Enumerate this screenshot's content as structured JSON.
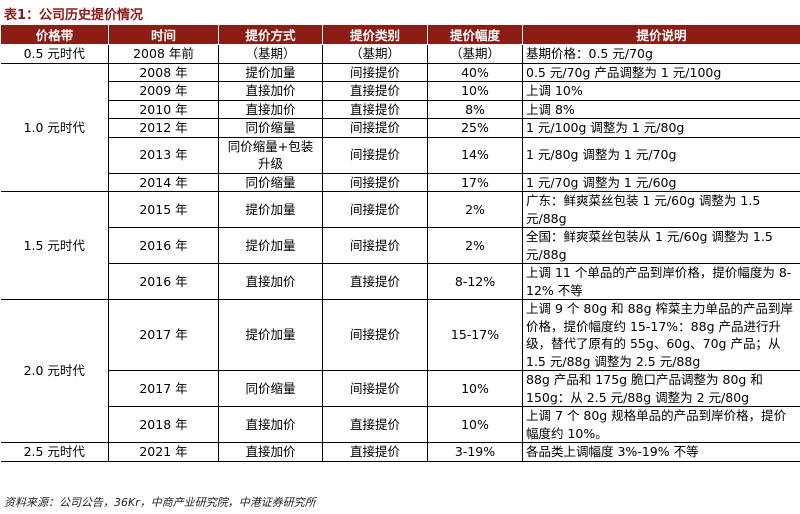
{
  "title": "表1：公司历史提价情况",
  "table": {
    "header": [
      "价格带",
      "时间",
      "提价方式",
      "提价类别",
      "提价幅度",
      "提价说明"
    ],
    "bands": [
      {
        "label": "0.5 元时代",
        "span": 1
      },
      {
        "label": "1.0 元时代",
        "span": 6
      },
      {
        "label": "1.5 元时代",
        "span": 3
      },
      {
        "label": "2.0 元时代",
        "span": 3
      },
      {
        "label": "2.5 元时代",
        "span": 1
      }
    ],
    "rows": [
      [
        "2008 年前",
        "（基期）",
        "（基期）",
        "（基期）",
        "基期价格：0.5 元/70g"
      ],
      [
        "2008 年",
        "提价加量",
        "间接提价",
        "40%",
        "0.5 元/70g 产品调整为 1 元/100g"
      ],
      [
        "2009 年",
        "直接加价",
        "直接提价",
        "10%",
        "上调 10%"
      ],
      [
        "2010 年",
        "直接加价",
        "直接提价",
        "8%",
        "上调 8%"
      ],
      [
        "2012 年",
        "同价缩量",
        "间接提价",
        "25%",
        "1 元/100g 调整为 1 元/80g"
      ],
      [
        "2013 年",
        "同价缩量+包装升级",
        "间接提价",
        "14%",
        "1 元/80g 调整为 1 元/70g"
      ],
      [
        "2014 年",
        "同价缩量",
        "间接提价",
        "17%",
        "1 元/70g 调整为 1 元/60g"
      ],
      [
        "2015 年",
        "提价加量",
        "间接提价",
        "2%",
        "广东：鲜爽菜丝包装 1 元/60g 调整为 1.5 元/88g"
      ],
      [
        "2016 年",
        "提价加量",
        "间接提价",
        "2%",
        "全国：鲜爽菜丝包装从 1 元/60g 调整为 1.5 元/88g"
      ],
      [
        "2016 年",
        "直接加价",
        "直接提价",
        "8-12%",
        "上调 11 个单品的产品到岸价格，提价幅度为 8-12% 不等"
      ],
      [
        "2017 年",
        "提价加量",
        "间接提价",
        "15-17%",
        "上调 9 个 80g 和 88g 榨菜主力单品的产品到岸价格，提价幅度约 15-17%：88g 产品进行升级，替代了原有的 55g、60g、70g 产品；从 1.5 元/88g 调整为 2.5 元/88g"
      ],
      [
        "2017 年",
        "同价缩量",
        "间接提价",
        "10%",
        "88g 产品和 175g 脆口产品调整为 80g 和 150g：从 2.5 元/88g 调整为 2 元/80g"
      ],
      [
        "2018 年",
        "直接加价",
        "直接提价",
        "10%",
        "上调 7 个 80g 规格单品的产品到岸价格，提价幅度约 10%。"
      ],
      [
        "2021 年",
        "直接加价",
        "直接提价",
        "3-19%",
        "各品类上调幅度 3%-19% 不等"
      ]
    ]
  },
  "source": "资料来源：公司公告，36Kr，中商产业研究院，中港证券研究所"
}
